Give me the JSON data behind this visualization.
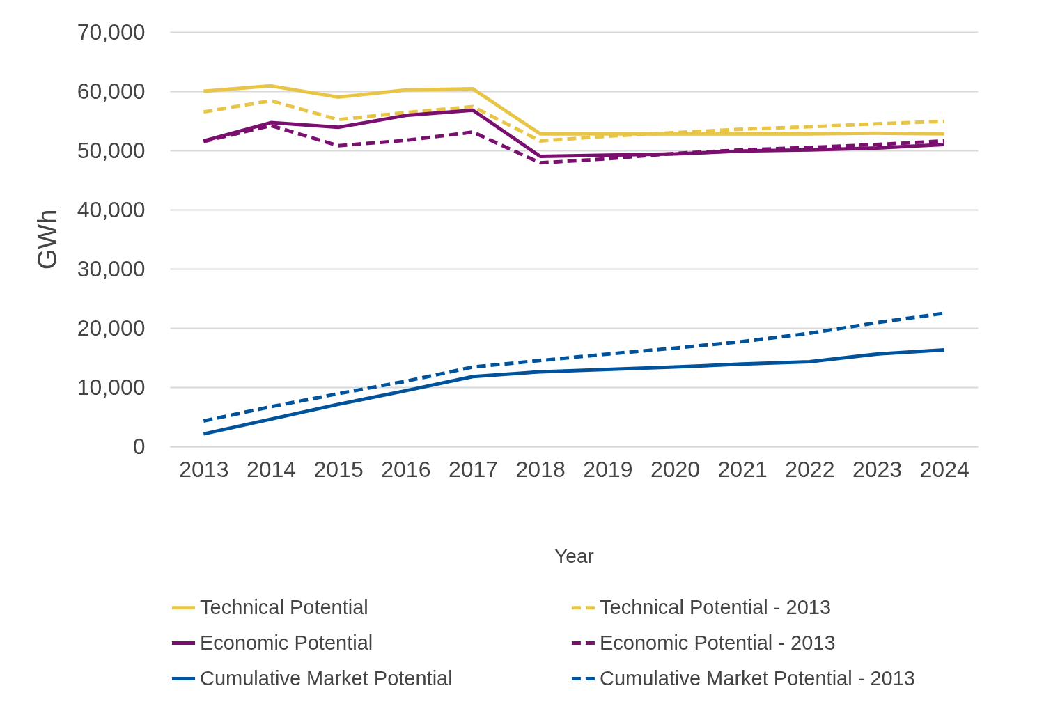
{
  "chart_data": {
    "type": "line",
    "xlabel": "Year",
    "ylabel": "GWh",
    "categories": [
      "2013",
      "2014",
      "2015",
      "2016",
      "2017",
      "2018",
      "2019",
      "2020",
      "2021",
      "2022",
      "2023",
      "2024"
    ],
    "ylim": [
      0,
      70000
    ],
    "yticks": [
      {
        "value": 0,
        "label": "0"
      },
      {
        "value": 10000,
        "label": "10,000"
      },
      {
        "value": 20000,
        "label": "20,000"
      },
      {
        "value": 30000,
        "label": "30,000"
      },
      {
        "value": 40000,
        "label": "40,000"
      },
      {
        "value": 50000,
        "label": "50,000"
      },
      {
        "value": 60000,
        "label": "60,000"
      },
      {
        "value": 70000,
        "label": "70,000"
      }
    ],
    "grid": "y",
    "legend": "bottom",
    "series": [
      {
        "name": "Technical Potential",
        "color": "#e8c547",
        "line_style": "solid",
        "values": [
          60000,
          60900,
          59000,
          60200,
          60400,
          52800,
          52800,
          52800,
          52800,
          52800,
          52900,
          52800
        ]
      },
      {
        "name": "Technical Potential - 2013",
        "color": "#e8c547",
        "line_style": "dashed",
        "values": [
          56500,
          58400,
          55200,
          56400,
          57400,
          51600,
          52400,
          53000,
          53600,
          54000,
          54500,
          54900
        ]
      },
      {
        "name": "Economic Potential",
        "color": "#7b0f6f",
        "line_style": "solid",
        "values": [
          51600,
          54700,
          53900,
          55900,
          56800,
          49000,
          49200,
          49400,
          49900,
          50100,
          50400,
          51000
        ]
      },
      {
        "name": "Economic Potential - 2013",
        "color": "#7b0f6f",
        "line_style": "dashed",
        "values": [
          51500,
          54200,
          50800,
          51700,
          53100,
          47900,
          48600,
          49500,
          50100,
          50500,
          51000,
          51600
        ]
      },
      {
        "name": "Cumulative Market Potential",
        "color": "#00539b",
        "line_style": "solid",
        "values": [
          2100,
          4600,
          7100,
          9400,
          11800,
          12600,
          13000,
          13400,
          13900,
          14300,
          15600,
          16300
        ]
      },
      {
        "name": "Cumulative Market Potential - 2013",
        "color": "#00539b",
        "line_style": "dashed",
        "values": [
          4300,
          6700,
          8900,
          11000,
          13400,
          14500,
          15600,
          16600,
          17700,
          19100,
          20900,
          22500
        ]
      }
    ]
  }
}
